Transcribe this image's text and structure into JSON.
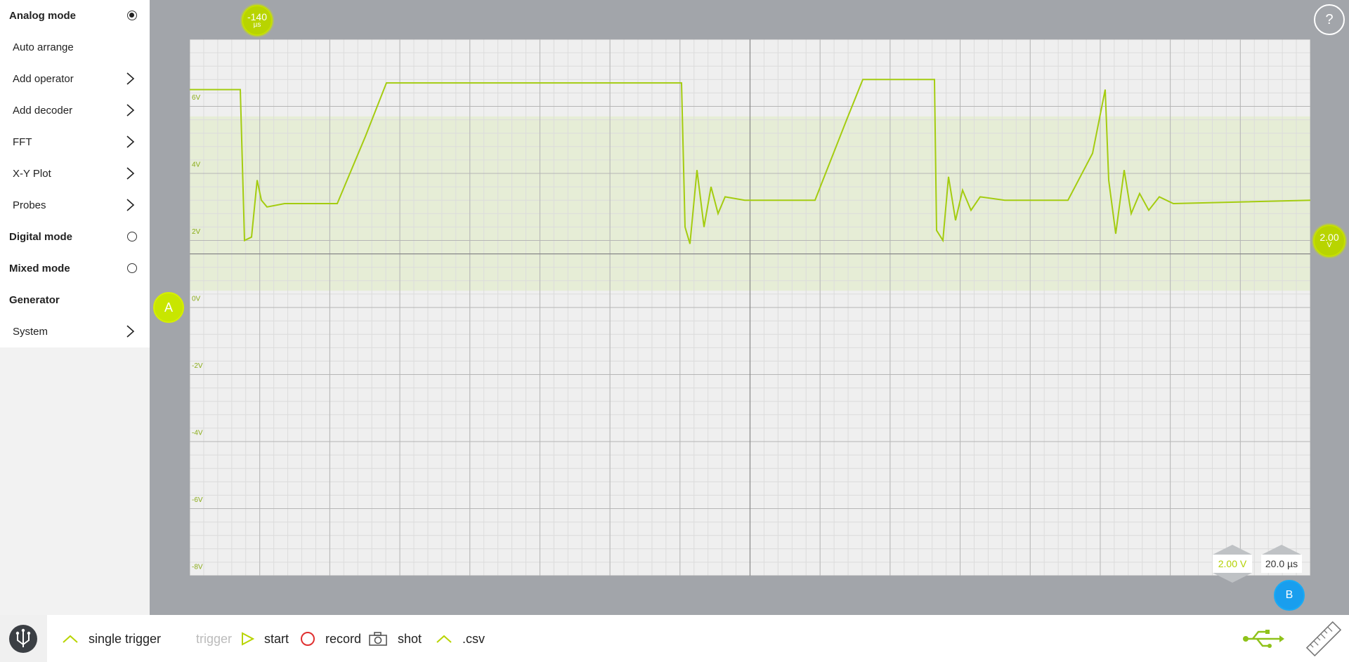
{
  "sidebar": {
    "items": [
      {
        "label": "Analog mode",
        "bold": true,
        "control": "radio-on"
      },
      {
        "label": "Auto arrange",
        "bold": false,
        "control": "none"
      },
      {
        "label": "Add operator",
        "bold": false,
        "control": "chevron"
      },
      {
        "label": "Add decoder",
        "bold": false,
        "control": "chevron"
      },
      {
        "label": "FFT",
        "bold": false,
        "control": "chevron"
      },
      {
        "label": "X-Y Plot",
        "bold": false,
        "control": "chevron"
      },
      {
        "label": "Probes",
        "bold": false,
        "control": "chevron"
      },
      {
        "label": "Digital mode",
        "bold": true,
        "control": "radio-off"
      },
      {
        "label": "Mixed mode",
        "bold": true,
        "control": "radio-off"
      },
      {
        "label": "Generator",
        "bold": true,
        "control": "none"
      },
      {
        "label": "System",
        "bold": false,
        "control": "chevron"
      }
    ]
  },
  "scope": {
    "time_marker": {
      "value": "-140",
      "unit": "µs"
    },
    "volt_marker": {
      "value": "2.00",
      "unit": "V"
    },
    "channel_a": "A",
    "channel_b": "B",
    "help": "?",
    "volt_scale": "2.00 V",
    "time_scale": "20.0 µs",
    "y_tick_labels": [
      "6V",
      "4V",
      "2V",
      "0V",
      "-2V",
      "-4V",
      "-6V",
      "-8V"
    ],
    "trace_color": "#a4cc10",
    "band_color": "#e6edd6"
  },
  "toolbar": {
    "single_trigger": "single trigger",
    "trigger": "trigger",
    "start": "start",
    "record": "record",
    "shot": "shot",
    "csv": ".csv"
  },
  "colors": {
    "accent": "#b8d400",
    "channel_b": "#199eee",
    "record": "#e03030"
  }
}
